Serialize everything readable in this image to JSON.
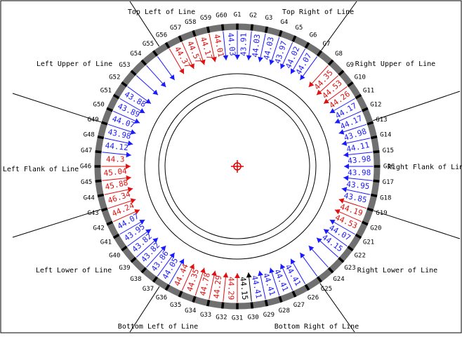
{
  "zone_labels": [
    {
      "key": "top-left",
      "text": "Top Left of Line"
    },
    {
      "key": "top-right",
      "text": "Top Right of Line"
    },
    {
      "key": "left-upper",
      "text": "Left Upper of Line"
    },
    {
      "key": "right-upper",
      "text": "Right Upper of Line"
    },
    {
      "key": "left-flank",
      "text": "Left Flank of Line"
    },
    {
      "key": "right-flank",
      "text": "Right Flank of Line"
    },
    {
      "key": "left-lower",
      "text": "Left Lower of Line"
    },
    {
      "key": "right-lower",
      "text": "Right Lower of Line"
    },
    {
      "key": "bottom-left",
      "text": "Bottom Left of Line"
    },
    {
      "key": "bottom-right",
      "text": "Bottom Right of Line"
    }
  ],
  "gauge_labels": [
    "G1",
    "G2",
    "G3",
    "G4",
    "G5",
    "G6",
    "G7",
    "G8",
    "G9",
    "G10",
    "G11",
    "G12",
    "G13",
    "G14",
    "G15",
    "G16",
    "G17",
    "G18",
    "G19",
    "G20",
    "G21",
    "G22",
    "G23",
    "G24",
    "G25",
    "G26",
    "G27",
    "G28",
    "G29",
    "G30",
    "G31",
    "G32",
    "G33",
    "G34",
    "G35",
    "G36",
    "G37",
    "G38",
    "G39",
    "G40",
    "G41",
    "G42",
    "G43",
    "G44",
    "G45",
    "G46",
    "G47",
    "G48",
    "G49",
    "G50",
    "G51",
    "G52",
    "G53",
    "G54",
    "G55",
    "G56",
    "G57",
    "G58",
    "G59",
    "G60"
  ],
  "measurements": [
    {
      "value": "43.91",
      "status": "ok"
    },
    {
      "value": "44.03",
      "status": "ok"
    },
    {
      "value": "44.03",
      "status": "ok"
    },
    {
      "value": "43.97",
      "status": "ok"
    },
    {
      "value": "44.02",
      "status": "ok"
    },
    {
      "value": "44.07",
      "status": "ok"
    },
    {
      "value": "",
      "status": "ok"
    },
    {
      "value": "44.35",
      "status": "high"
    },
    {
      "value": "44.53",
      "status": "high"
    },
    {
      "value": "44.26",
      "status": "high"
    },
    {
      "value": "44.17",
      "status": "ok"
    },
    {
      "value": "44.17",
      "status": "ok"
    },
    {
      "value": "43.98",
      "status": "ok"
    },
    {
      "value": "44.11",
      "status": "ok"
    },
    {
      "value": "43.98",
      "status": "ok"
    },
    {
      "value": "43.98",
      "status": "ok"
    },
    {
      "value": "43.95",
      "status": "ok"
    },
    {
      "value": "43.85",
      "status": "ok"
    },
    {
      "value": "44.19",
      "status": "high"
    },
    {
      "value": "44.53",
      "status": "high"
    },
    {
      "value": "44.07",
      "status": "ok"
    },
    {
      "value": "44.15",
      "status": "ok"
    },
    {
      "value": "",
      "status": "ok"
    },
    {
      "value": "",
      "status": "ok"
    },
    {
      "value": "",
      "status": "ok"
    },
    {
      "value": "44.41",
      "status": "ok"
    },
    {
      "value": "44.41",
      "status": "ok"
    },
    {
      "value": "44.41",
      "status": "ok"
    },
    {
      "value": "44.41",
      "status": "ok"
    },
    {
      "value": "44.15",
      "status": "neutral"
    },
    {
      "value": "44.29",
      "status": "high"
    },
    {
      "value": "44.29",
      "status": "high"
    },
    {
      "value": "44.78",
      "status": "high"
    },
    {
      "value": "44.35",
      "status": "high"
    },
    {
      "value": "44.44",
      "status": "high"
    },
    {
      "value": "44.05",
      "status": "ok"
    },
    {
      "value": "43.86",
      "status": "ok"
    },
    {
      "value": "43.82",
      "status": "ok"
    },
    {
      "value": "43.82",
      "status": "ok"
    },
    {
      "value": "43.95",
      "status": "ok"
    },
    {
      "value": "44.07",
      "status": "ok"
    },
    {
      "value": "44.24",
      "status": "high"
    },
    {
      "value": "46.34",
      "status": "high"
    },
    {
      "value": "45.88",
      "status": "high"
    },
    {
      "value": "45.04",
      "status": "high"
    },
    {
      "value": "44.3",
      "status": "high"
    },
    {
      "value": "44.12",
      "status": "ok"
    },
    {
      "value": "43.98",
      "status": "ok"
    },
    {
      "value": "44.07",
      "status": "ok"
    },
    {
      "value": "43.89",
      "status": "ok"
    },
    {
      "value": "43.88",
      "status": "ok"
    },
    {
      "value": "",
      "status": "ok"
    },
    {
      "value": "",
      "status": "ok"
    },
    {
      "value": "",
      "status": "ok"
    },
    {
      "value": "",
      "status": "ok"
    },
    {
      "value": "44.37",
      "status": "high"
    },
    {
      "value": "44.57",
      "status": "high"
    },
    {
      "value": "44.17",
      "status": "high"
    },
    {
      "value": "44.01",
      "status": "high"
    },
    {
      "value": "44.03",
      "status": "ok"
    }
  ],
  "colors": {
    "ok": "#1a1aff",
    "high": "#e01010",
    "neutral": "#000000",
    "ring": "#707070",
    "center_marker": "#e00000",
    "text": "#000000",
    "background": "#ffffff"
  }
}
